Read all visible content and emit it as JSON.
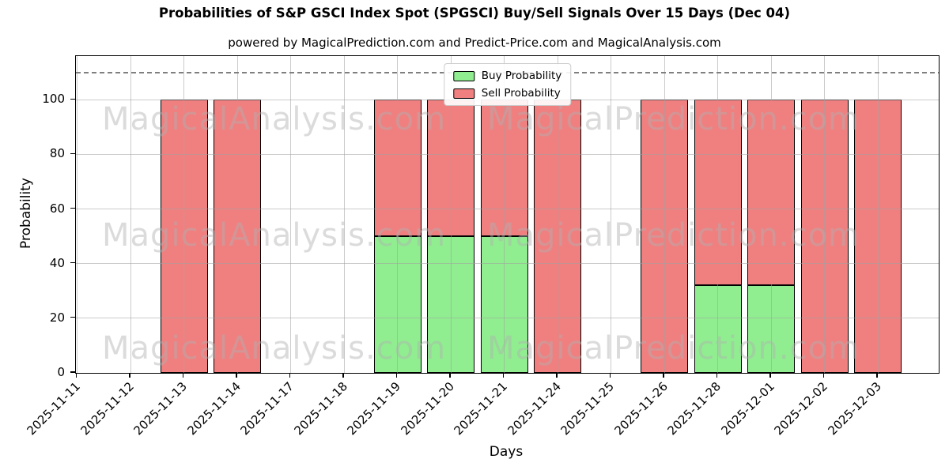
{
  "title": "Probabilities of S&P GSCI Index Spot (SPGSCI) Buy/Sell Signals Over 15 Days (Dec 04)",
  "subtitle": "powered by MagicalPrediction.com and Predict-Price.com and MagicalAnalysis.com",
  "watermarks": {
    "left_text": "MagicalAnalysis.com",
    "right_text": "MagicalPrediction.com",
    "rows": 3
  },
  "colors": {
    "buy": "#90EE90",
    "sell": "#F08080",
    "bar_edge": "#000000",
    "grid": "rgba(160,160,160,0.55)",
    "dashed_line": "#7f7f7f",
    "watermark": "rgba(175,175,175,0.45)",
    "background": "#ffffff"
  },
  "chart_data": {
    "type": "bar",
    "stacked": true,
    "title": "Probabilities of S&P GSCI Index Spot (SPGSCI) Buy/Sell Signals Over 15 Days (Dec 04)",
    "xlabel": "Days",
    "ylabel": "Probability",
    "categories": [
      "2025-11-11",
      "2025-11-12",
      "2025-11-13",
      "2025-11-14",
      "2025-11-17",
      "2025-11-18",
      "2025-11-19",
      "2025-11-20",
      "2025-11-21",
      "2025-11-24",
      "2025-11-25",
      "2025-11-26",
      "2025-11-28",
      "2025-12-01",
      "2025-12-02",
      "2025-12-03"
    ],
    "series": [
      {
        "name": "Buy Probability",
        "color": "#90EE90",
        "values": [
          0,
          0,
          0,
          0,
          0,
          0,
          50,
          50,
          50,
          0,
          0,
          0,
          32,
          32,
          0,
          0
        ]
      },
      {
        "name": "Sell Probability",
        "color": "#F08080",
        "values": [
          0,
          0,
          100,
          100,
          0,
          0,
          50,
          50,
          50,
          100,
          0,
          100,
          68,
          68,
          100,
          100
        ]
      }
    ],
    "ylim": [
      0,
      116
    ],
    "yticks": [
      0,
      20,
      40,
      60,
      80,
      100
    ],
    "dashed_line_y": 110,
    "grid": true,
    "legend_position": "upper center"
  }
}
